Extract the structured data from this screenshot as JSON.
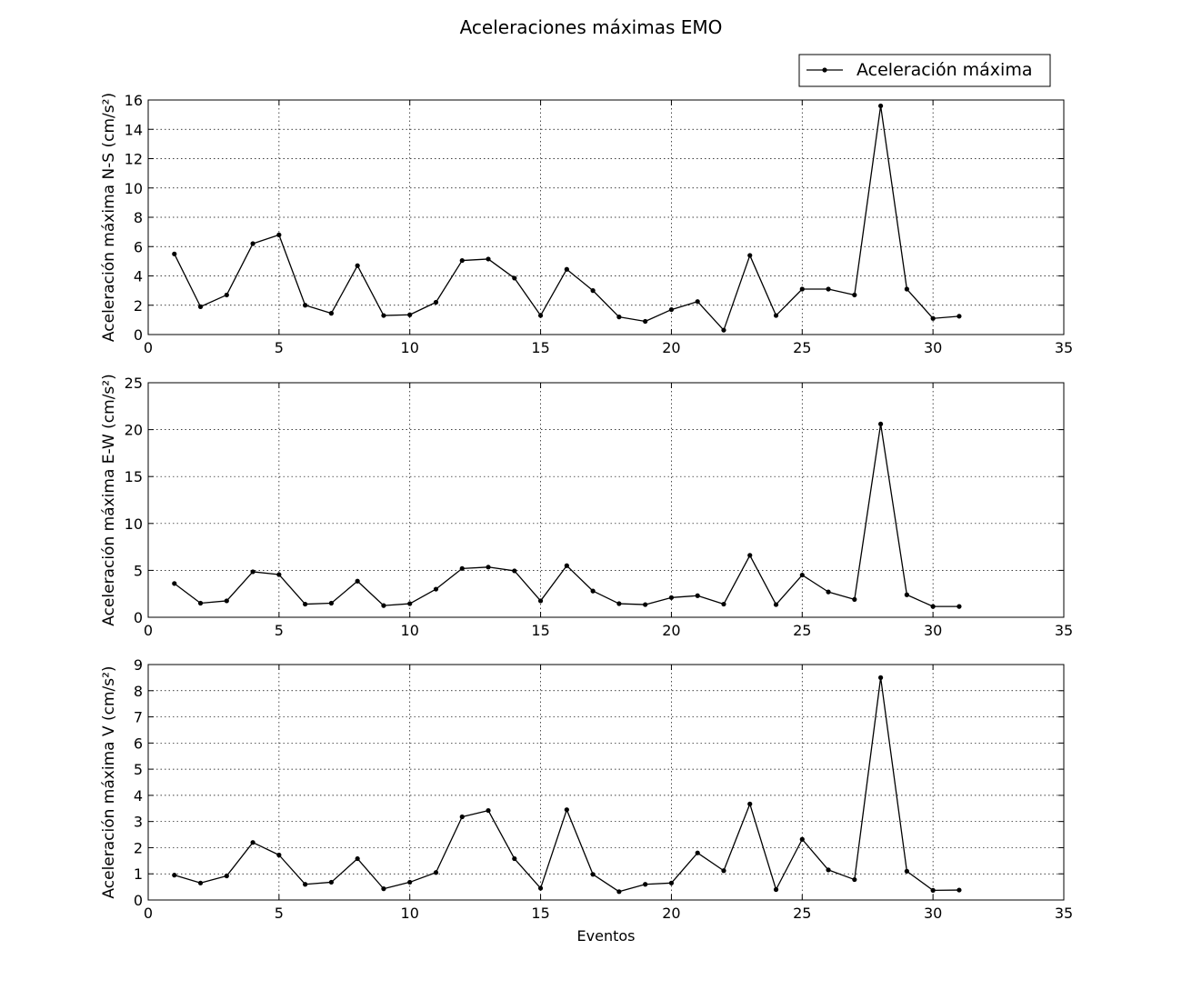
{
  "figure": {
    "title": "Aceleraciones máximas EMO",
    "legend": {
      "label": "Aceleración máxima",
      "placement": "top-right"
    }
  },
  "chart_data": [
    {
      "type": "line",
      "name": "N-S",
      "title": "",
      "xlabel": "",
      "ylabel": "Aceleración máxima N-S (cm/s²)",
      "xlim": [
        0,
        35
      ],
      "ylim": [
        0,
        16
      ],
      "xticks": [
        0,
        5,
        10,
        15,
        20,
        25,
        30,
        35
      ],
      "yticks": [
        0,
        2,
        4,
        6,
        8,
        10,
        12,
        14,
        16
      ],
      "grid": true,
      "x": [
        1,
        2,
        3,
        4,
        5,
        6,
        7,
        8,
        9,
        10,
        11,
        12,
        13,
        14,
        15,
        16,
        17,
        18,
        19,
        20,
        21,
        22,
        23,
        24,
        25,
        26,
        27,
        28,
        29,
        30,
        31
      ],
      "series": [
        {
          "name": "Aceleración máxima",
          "values": [
            5.5,
            1.9,
            2.7,
            6.2,
            6.8,
            2.0,
            1.45,
            4.7,
            1.3,
            1.35,
            2.2,
            5.05,
            5.15,
            3.85,
            1.3,
            4.45,
            3.0,
            1.2,
            0.9,
            1.7,
            2.25,
            0.3,
            5.4,
            1.3,
            3.1,
            3.1,
            2.7,
            15.6,
            3.1,
            1.1,
            1.25
          ]
        }
      ]
    },
    {
      "type": "line",
      "name": "E-W",
      "title": "",
      "xlabel": "",
      "ylabel": "Aceleración máxima E-W (cm/s²)",
      "xlim": [
        0,
        35
      ],
      "ylim": [
        0,
        25
      ],
      "xticks": [
        0,
        5,
        10,
        15,
        20,
        25,
        30,
        35
      ],
      "yticks": [
        0,
        5,
        10,
        15,
        20,
        25
      ],
      "grid": true,
      "x": [
        1,
        2,
        3,
        4,
        5,
        6,
        7,
        8,
        9,
        10,
        11,
        12,
        13,
        14,
        15,
        16,
        17,
        18,
        19,
        20,
        21,
        22,
        23,
        24,
        25,
        26,
        27,
        28,
        29,
        30,
        31
      ],
      "series": [
        {
          "name": "Aceleración máxima",
          "values": [
            3.6,
            1.5,
            1.75,
            4.85,
            4.55,
            1.4,
            1.5,
            3.85,
            1.25,
            1.45,
            3.0,
            5.2,
            5.35,
            4.95,
            1.75,
            5.5,
            2.8,
            1.45,
            1.35,
            2.1,
            2.3,
            1.4,
            6.6,
            1.35,
            4.5,
            2.7,
            1.9,
            20.6,
            2.4,
            1.15,
            1.15
          ]
        }
      ]
    },
    {
      "type": "line",
      "name": "V",
      "title": "",
      "xlabel": "Eventos",
      "ylabel": "Aceleración máxima V (cm/s²)",
      "xlim": [
        0,
        35
      ],
      "ylim": [
        0,
        9
      ],
      "xticks": [
        0,
        5,
        10,
        15,
        20,
        25,
        30,
        35
      ],
      "yticks": [
        0,
        1,
        2,
        3,
        4,
        5,
        6,
        7,
        8,
        9
      ],
      "grid": true,
      "x": [
        1,
        2,
        3,
        4,
        5,
        6,
        7,
        8,
        9,
        10,
        11,
        12,
        13,
        14,
        15,
        16,
        17,
        18,
        19,
        20,
        21,
        22,
        23,
        24,
        25,
        26,
        27,
        28,
        29,
        30,
        31
      ],
      "series": [
        {
          "name": "Aceleración máxima",
          "values": [
            0.95,
            0.65,
            0.92,
            2.2,
            1.72,
            0.6,
            0.68,
            1.58,
            0.43,
            0.68,
            1.05,
            3.18,
            3.42,
            1.58,
            0.45,
            3.45,
            0.98,
            0.32,
            0.6,
            0.65,
            1.8,
            1.12,
            3.67,
            0.4,
            2.32,
            1.15,
            0.78,
            8.5,
            1.1,
            0.37,
            0.38
          ]
        }
      ]
    }
  ]
}
